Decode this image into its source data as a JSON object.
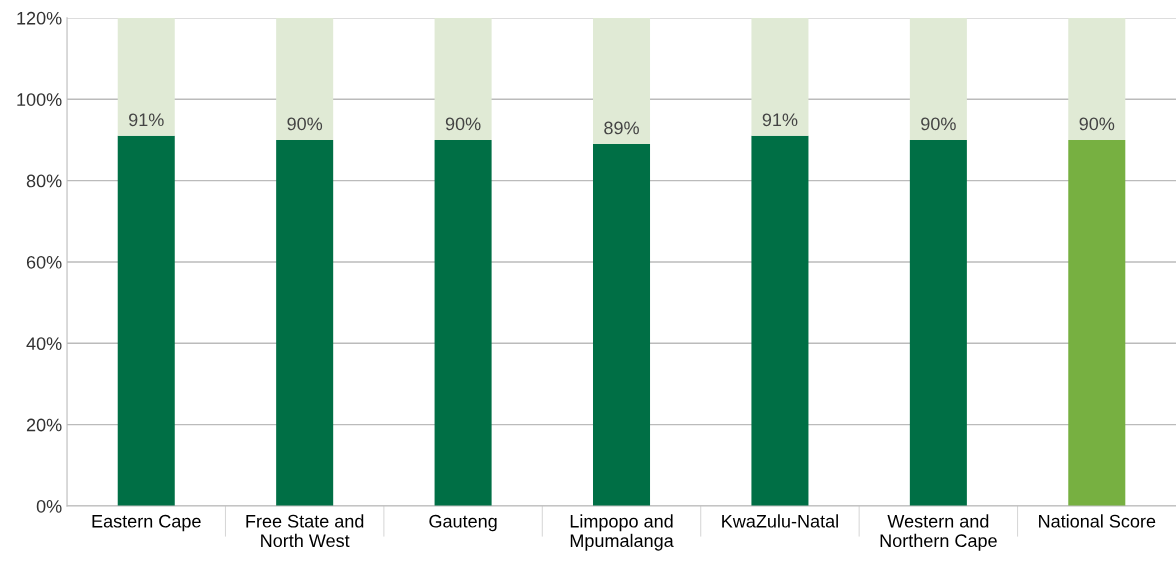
{
  "chart_data": {
    "type": "bar",
    "stacked": true,
    "categories": [
      "Eastern Cape",
      "Free State and\nNorth West",
      "Gauteng",
      "Limpopo and\nMpumalanga",
      "KwaZulu-Natal",
      "Western and\nNorthern Cape",
      "National Score"
    ],
    "series": [
      {
        "colors": [
          "#006f45",
          "#006f45",
          "#006f45",
          "#006f45",
          "#006f45",
          "#006f45",
          "#77b041"
        ],
        "values": [
          91,
          90,
          90,
          89,
          91,
          90,
          90
        ],
        "value_labels": [
          "91%",
          "90%",
          "90%",
          "89%",
          "91%",
          "90%",
          "90%"
        ]
      },
      {
        "color": "#e0ead5",
        "values": [
          29,
          30,
          30,
          31,
          29,
          30,
          30
        ]
      }
    ],
    "ylim": [
      0,
      120
    ],
    "yticks": [
      {
        "value": 0,
        "label": "0%"
      },
      {
        "value": 20,
        "label": "20%"
      },
      {
        "value": 40,
        "label": "40%"
      },
      {
        "value": 60,
        "label": "60%"
      },
      {
        "value": 80,
        "label": "80%"
      },
      {
        "value": 100,
        "label": "100%"
      },
      {
        "value": 120,
        "label": "120%"
      }
    ],
    "grid": "y"
  }
}
